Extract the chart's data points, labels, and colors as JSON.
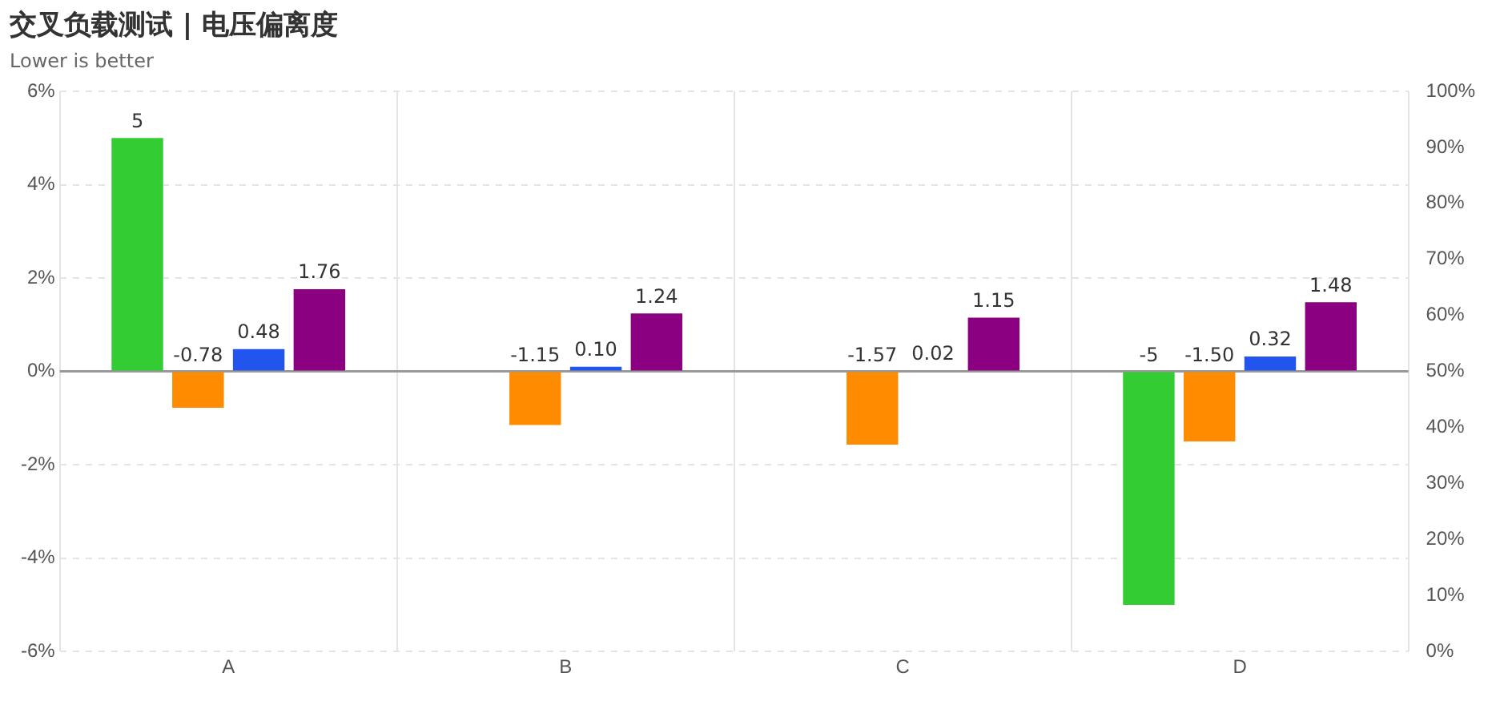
{
  "chart_data": {
    "type": "bar",
    "title": "交叉负载测试 | 电压偏离度",
    "subtitle": "Lower is better",
    "categories": [
      "A",
      "B",
      "C",
      "D"
    ],
    "series": [
      {
        "color": "#33cc33",
        "values": [
          5,
          null,
          null,
          -5
        ],
        "value_labels": [
          "5",
          null,
          null,
          "-5"
        ]
      },
      {
        "color": "#ff8c00",
        "values": [
          -0.78,
          -1.15,
          -1.57,
          -1.5
        ],
        "value_labels": [
          "-0.78",
          "-1.15",
          "-1.57",
          "-1.50"
        ]
      },
      {
        "color": "#2255ee",
        "values": [
          0.48,
          0.1,
          0.02,
          0.32
        ],
        "value_labels": [
          "0.48",
          "0.10",
          "0.02",
          "0.32"
        ]
      },
      {
        "color": "#8b0080",
        "values": [
          1.76,
          1.24,
          1.15,
          1.48
        ],
        "value_labels": [
          "1.76",
          "1.24",
          "1.15",
          "1.48"
        ]
      }
    ],
    "ylim": [
      -6,
      6
    ],
    "yticks": [
      {
        "value": -6,
        "label": "-6%"
      },
      {
        "value": -4,
        "label": "-4%"
      },
      {
        "value": -2,
        "label": "-2%"
      },
      {
        "value": 0,
        "label": "0%"
      },
      {
        "value": 2,
        "label": "2%"
      },
      {
        "value": 4,
        "label": "4%"
      },
      {
        "value": 6,
        "label": "6%"
      }
    ],
    "y2lim": [
      0,
      100
    ],
    "y2ticks": [
      {
        "value": 0,
        "label": "0%"
      },
      {
        "value": 10,
        "label": "10%"
      },
      {
        "value": 20,
        "label": "20%"
      },
      {
        "value": 30,
        "label": "30%"
      },
      {
        "value": 40,
        "label": "40%"
      },
      {
        "value": 50,
        "label": "50%"
      },
      {
        "value": 60,
        "label": "60%"
      },
      {
        "value": 70,
        "label": "70%"
      },
      {
        "value": 80,
        "label": "80%"
      },
      {
        "value": 90,
        "label": "90%"
      },
      {
        "value": 100,
        "label": "100%"
      }
    ],
    "ref_lines": [
      {
        "axis": "y",
        "value": 0,
        "color": "#999999"
      }
    ],
    "grid": true,
    "legend": false
  }
}
